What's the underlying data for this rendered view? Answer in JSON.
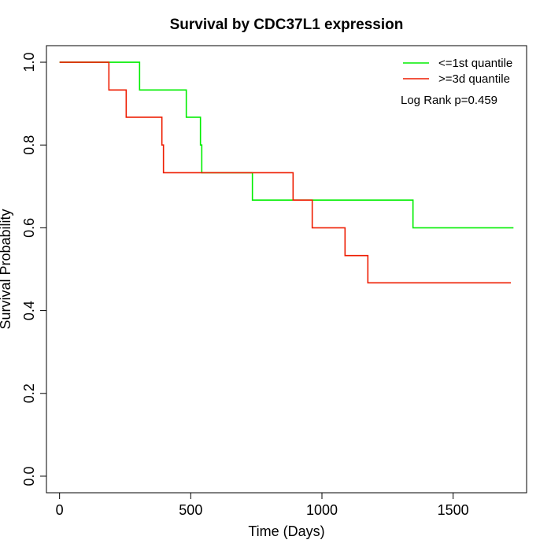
{
  "chart_data": {
    "type": "line",
    "subtype": "kaplan-meier step",
    "title": "Survival by CDC37L1 expression",
    "xlabel": "Time (Days)",
    "ylabel": "Survival Probability",
    "xlim": [
      -50,
      1780
    ],
    "ylim": [
      -0.04,
      1.04
    ],
    "x_ticks": [
      0,
      500,
      1000,
      1500
    ],
    "x_tick_labels": [
      "0",
      "500",
      "1000",
      "1500"
    ],
    "y_ticks": [
      0.0,
      0.2,
      0.4,
      0.6,
      0.8,
      1.0
    ],
    "y_tick_labels": [
      "0.0",
      "0.2",
      "0.4",
      "0.6",
      "0.8",
      "1.0"
    ],
    "grid": false,
    "legend_position": "top-right",
    "annotation": "Log Rank p=0.459",
    "series": [
      {
        "name": "<=1st quantile",
        "color": "#00ee00",
        "x": [
          0,
          305,
          483,
          537,
          542,
          735,
          1347,
          1730
        ],
        "y": [
          1.0,
          0.933,
          0.867,
          0.8,
          0.733,
          0.667,
          0.6,
          0.6
        ]
      },
      {
        "name": ">=3d quantile",
        "color": "#ee1c00",
        "x": [
          0,
          188,
          254,
          390,
          396,
          890,
          963,
          1088,
          1175,
          1720
        ],
        "y": [
          1.0,
          0.933,
          0.867,
          0.8,
          0.733,
          0.667,
          0.6,
          0.533,
          0.467,
          0.467
        ]
      }
    ]
  }
}
